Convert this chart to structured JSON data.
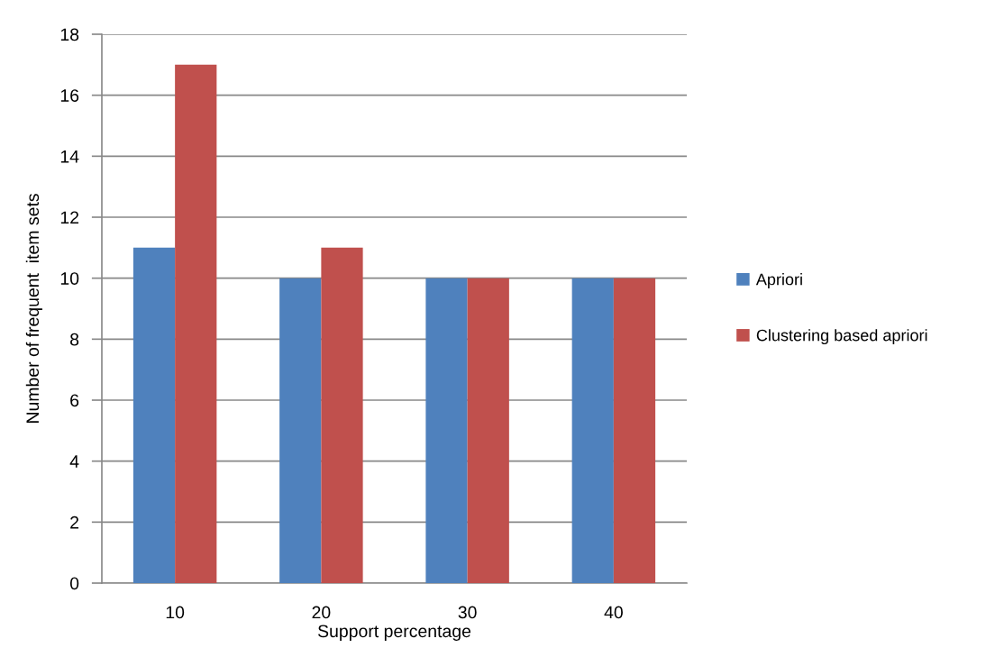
{
  "chart_data": {
    "type": "bar",
    "xlabel": "Support percentage",
    "ylabel": "Number of frequent  item sets",
    "categories": [
      "10",
      "20",
      "30",
      "40"
    ],
    "series": [
      {
        "name": "Apriori",
        "color": "#4f81bd",
        "values": [
          11,
          10,
          10,
          10
        ]
      },
      {
        "name": "Clustering based apriori",
        "color": "#c0504d",
        "values": [
          17,
          11,
          10,
          10
        ]
      }
    ],
    "ylim": [
      0,
      18
    ],
    "yticks": [
      0,
      2,
      4,
      6,
      8,
      10,
      12,
      14,
      16,
      18
    ],
    "grid": "y",
    "legend": "right"
  }
}
